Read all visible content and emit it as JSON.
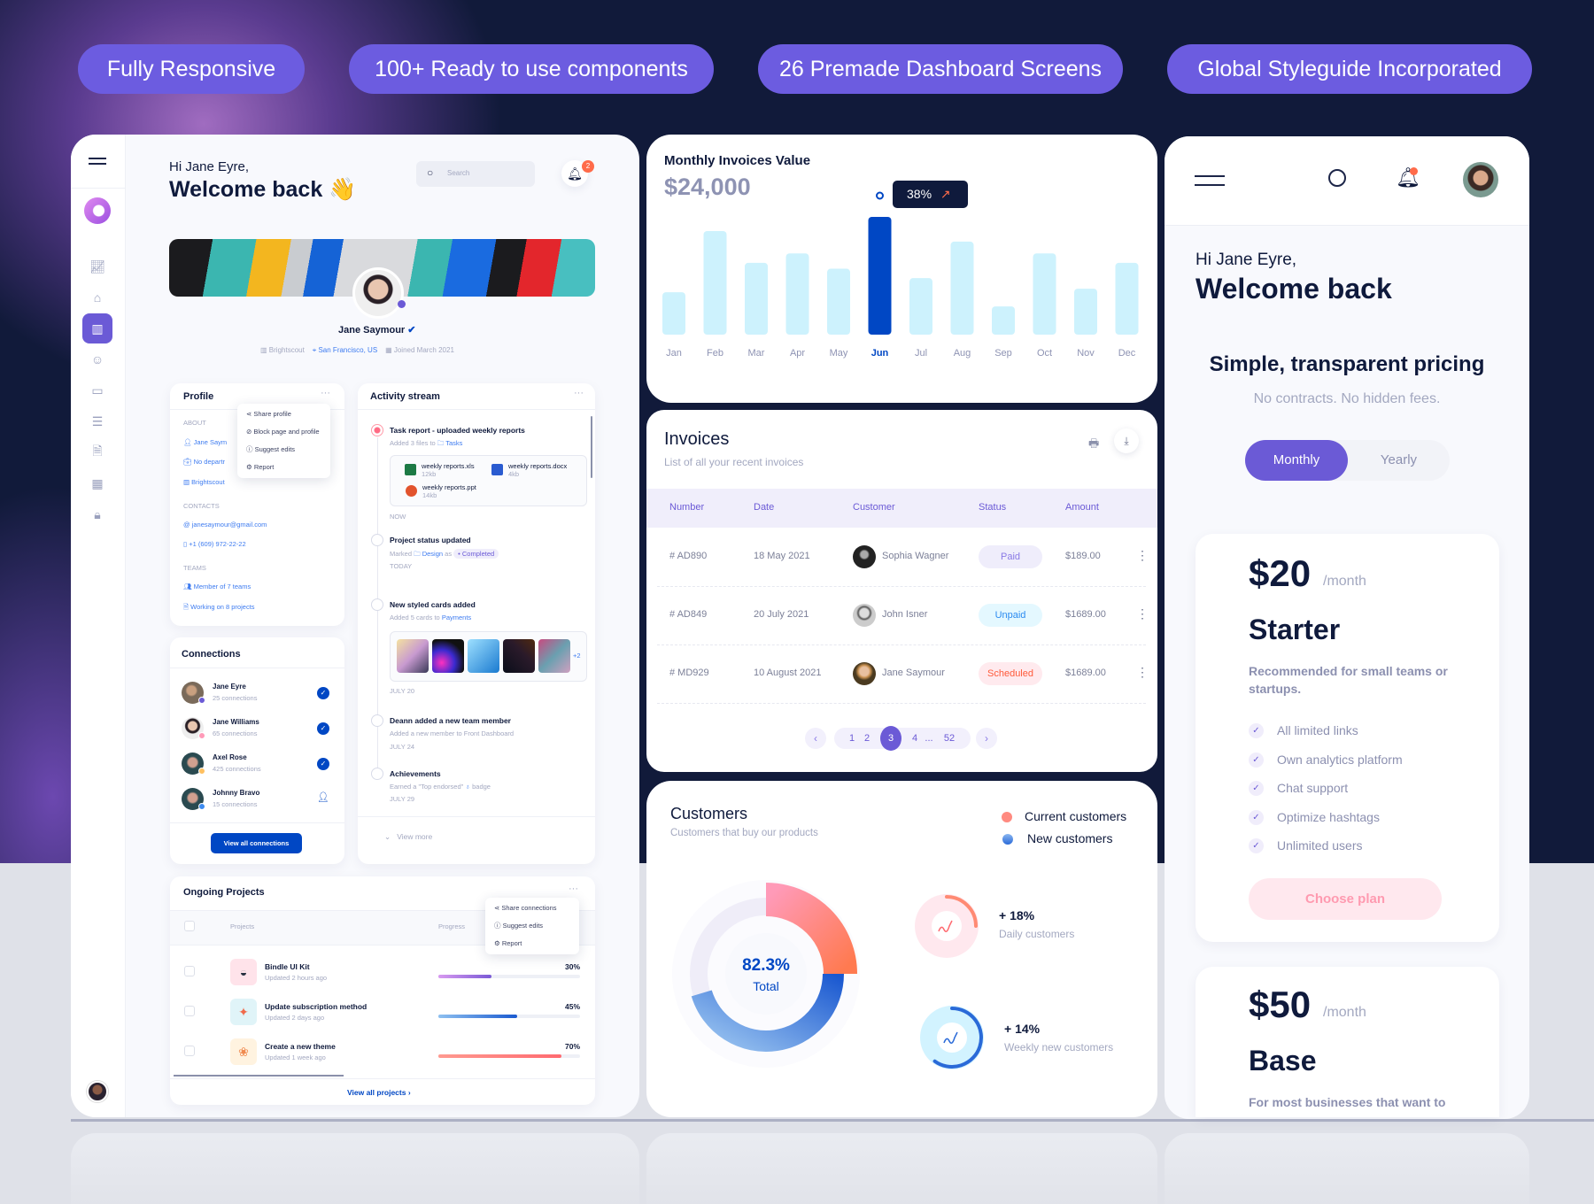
{
  "features": [
    "Fully Responsive",
    "100+ Ready to use components",
    "26 Premade Dashboard Screens",
    "Global Styleguide Incorporated"
  ],
  "colors": {
    "accent": "#6c5ce0",
    "primary_blue": "#0047c4",
    "navy": "#111a3a",
    "salmon": "#ff8a73"
  },
  "dashboard": {
    "greeting": "Hi Jane Eyre,",
    "welcome": "Welcome back",
    "wave": "👋",
    "search_placeholder": "Search",
    "notification_count": "2",
    "sidebar": [
      "analytics-icon",
      "bag-icon",
      "chart-icon",
      "users-icon",
      "wallet-icon",
      "document-icon",
      "file-icon",
      "calendar-icon",
      "lock-icon"
    ],
    "profile": {
      "name": "Jane Saymour",
      "company": "Brightscout",
      "location": "San Francisco, US",
      "joined": "Joined March 2021"
    },
    "profile_card": {
      "title": "Profile",
      "about": "ABOUT",
      "name": "Jane Saym",
      "department": "No departr",
      "company": "Brightscout",
      "contacts": "CONTACTS",
      "email": "janesaymour@gmail.com",
      "phone": "+1 (609) 972-22-22",
      "teams": "TEAMS",
      "teams_count": "Member of 7 teams",
      "projects_count": "Working on 8 projects",
      "menu": [
        "Share profile",
        "Block page and profile",
        "Suggest edits",
        "Report"
      ]
    },
    "activity": {
      "title": "Activity stream",
      "items": [
        {
          "title": "Task report - uploaded weekly reports",
          "sub": "Added 3 files to",
          "link": "Tasks",
          "time": "NOW"
        },
        {
          "title": "Project status updated",
          "sub": "Marked",
          "link": "Design",
          "mid": "as",
          "tag": "Completed",
          "time": "TODAY"
        },
        {
          "title": "New styled cards added",
          "sub": "Added 5 cards to",
          "link": "Payments",
          "more": "+2",
          "time": "JULY 20"
        },
        {
          "title": "Deann added a new team member",
          "sub": "Added a new member to Front Dashboard",
          "time": "JULY 24"
        },
        {
          "title": "Achievements",
          "sub": "Earned a \"Top endorsed\"",
          "sub2": "badge",
          "time": "JULY 29"
        }
      ],
      "files": [
        {
          "name": "weekly reports.xls",
          "size": "12kb"
        },
        {
          "name": "weekly reports.docx",
          "size": "4kb"
        },
        {
          "name": "weekly reports.ppt",
          "size": "14kb"
        }
      ],
      "view_more": "View more"
    },
    "connections": {
      "title": "Connections",
      "button": "View all connections",
      "items": [
        {
          "name": "Jane Eyre",
          "sub": "25 connections"
        },
        {
          "name": "Jane Williams",
          "sub": "65 connections"
        },
        {
          "name": "Axel Rose",
          "sub": "425 connections"
        },
        {
          "name": "Johnny Bravo",
          "sub": "15 connections"
        }
      ]
    },
    "projects": {
      "title": "Ongoing Projects",
      "col_projects": "Projects",
      "col_progress": "Progress",
      "menu": [
        "Share connections",
        "Suggest edits",
        "Report"
      ],
      "items": [
        {
          "name": "Bindle UI Kit",
          "sub": "Updated 2 hours ago",
          "progress": 30,
          "label": "30%"
        },
        {
          "name": "Update subscription method",
          "sub": "Updated 2 days ago",
          "progress": 45,
          "label": "45%"
        },
        {
          "name": "Create a new theme",
          "sub": "Updated 1 week ago",
          "progress": 70,
          "label": "70%"
        }
      ],
      "view_all": "View all projects"
    }
  },
  "chart_data": [
    {
      "type": "bar",
      "title": "Monthly Invoices Value",
      "value": "$24,000",
      "categories": [
        "Jan",
        "Feb",
        "Mar",
        "Apr",
        "May",
        "Jun",
        "Jul",
        "Aug",
        "Sep",
        "Oct",
        "Nov",
        "Dec"
      ],
      "values": [
        36,
        88,
        61,
        69,
        56,
        100,
        48,
        79,
        24,
        69,
        39,
        61
      ],
      "highlight": "Jun",
      "tooltip": "38%",
      "xlabel": "",
      "ylabel": ""
    },
    {
      "type": "pie",
      "title": "Customers",
      "subtitle": "Customers that buy our products",
      "center_value": "82.3%",
      "center_label": "Total",
      "series": [
        {
          "name": "Current customers",
          "share": 25
        },
        {
          "name": "New customers",
          "share": 37
        }
      ],
      "stats": [
        {
          "value": "+ 18%",
          "label": "Daily customers",
          "fill": 25
        },
        {
          "value": "+ 14%",
          "label": "Weekly new customers",
          "fill": 60
        }
      ]
    }
  ],
  "invoices": {
    "title": "Invoices",
    "subtitle": "List of all your recent invoices",
    "columns": [
      "Number",
      "Date",
      "Customer",
      "Status",
      "Amount"
    ],
    "rows": [
      {
        "number": "# AD890",
        "date": "18 May 2021",
        "customer": "Sophia Wagner",
        "status": "Paid",
        "amount": "$189.00"
      },
      {
        "number": "# AD849",
        "date": "20 July 2021",
        "customer": "John Isner",
        "status": "Unpaid",
        "amount": "$1689.00"
      },
      {
        "number": "# MD929",
        "date": "10 August 2021",
        "customer": "Jane Saymour",
        "status": "Scheduled",
        "amount": "$1689.00"
      }
    ],
    "pages": [
      "1",
      "2",
      "3",
      "4",
      "...",
      "52"
    ],
    "current_page": "3"
  },
  "pricing": {
    "greeting": "Hi Jane Eyre,",
    "welcome": "Welcome back",
    "title": "Simple, transparent pricing",
    "subtitle": "No contracts. No hidden fees.",
    "toggle": [
      "Monthly",
      "Yearly"
    ],
    "selected": "Monthly",
    "plans": [
      {
        "price": "$20",
        "period": "/month",
        "name": "Starter",
        "desc": "Recommended for small teams or startups.",
        "features": [
          "All limited links",
          "Own analytics platform",
          "Chat support",
          "Optimize hashtags",
          "Unlimited users"
        ],
        "button": "Choose plan"
      },
      {
        "price": "$50",
        "period": "/month",
        "name": "Base",
        "desc": "For most businesses that want to"
      }
    ]
  }
}
